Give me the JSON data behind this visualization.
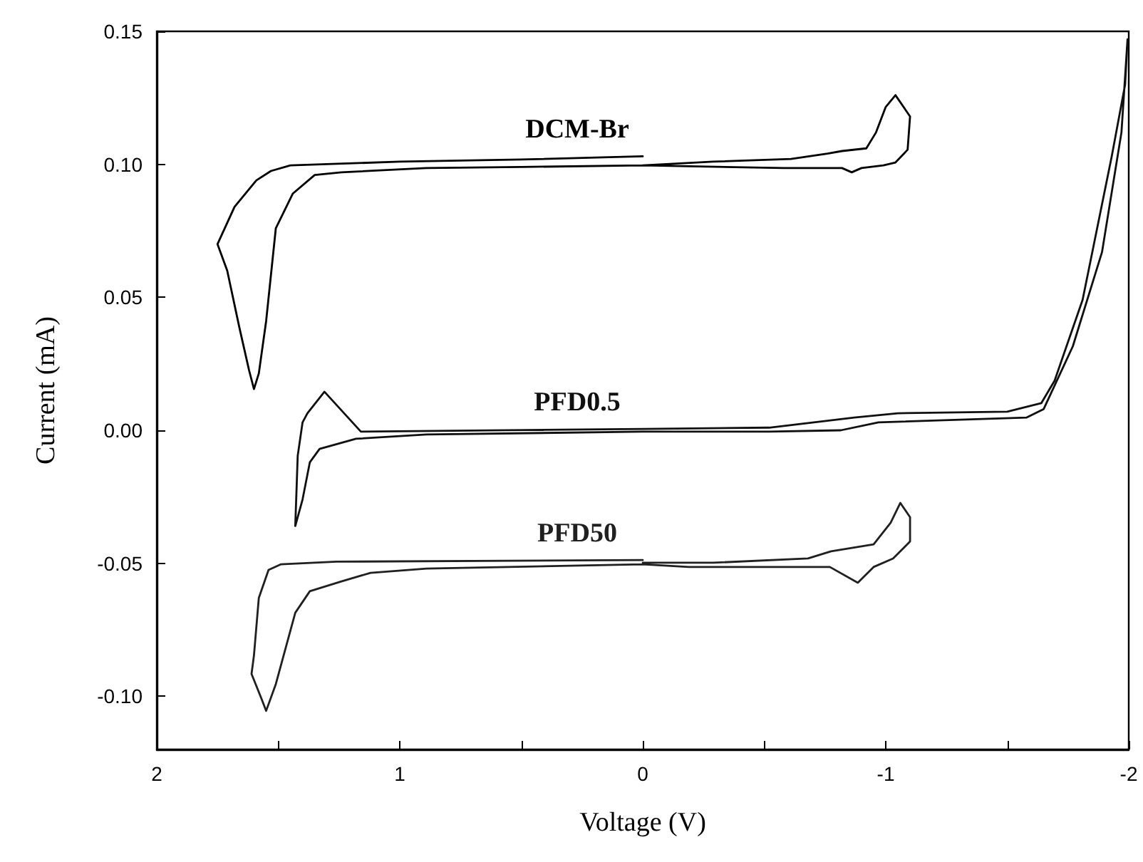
{
  "chart_data": {
    "type": "line",
    "xlabel": "Voltage (V)",
    "ylabel": "Current (mA)",
    "xlim": [
      2,
      -2
    ],
    "ylim": [
      -0.12,
      0.15
    ],
    "xticks": [
      2,
      {
        "value": 1.5,
        "label": null
      },
      1,
      {
        "value": 0.5,
        "label": null
      },
      0,
      {
        "value": -0.5,
        "label": null
      },
      -1,
      {
        "value": -1.5,
        "label": null
      },
      -2
    ],
    "yticks": [
      {
        "value": -0.1,
        "label": "-0.10"
      },
      -0.05,
      {
        "value": 0,
        "label": "0.00"
      },
      0.05,
      {
        "value": 0.1,
        "label": "0.10"
      },
      0.15
    ],
    "grid": false,
    "legend": false,
    "marker": "none",
    "line_style": "solid",
    "series": [
      {
        "name": "DCM-Br",
        "color": "#000000",
        "x": [
          0,
          0.5,
          1.0,
          1.45,
          1.53,
          1.59,
          1.68,
          1.75,
          1.71,
          1.66,
          1.62,
          1.6,
          1.58,
          1.55,
          1.51,
          1.44,
          1.35,
          1.24,
          0.89,
          0.5,
          0,
          -0.58,
          -0.82,
          -0.86,
          -0.9,
          -0.99,
          -1.04,
          -1.09,
          -1.1,
          -1.07,
          -1.04,
          -1.0,
          -0.96,
          -0.92,
          -0.82,
          -0.76,
          -0.61,
          -0.29,
          0
        ],
        "values": [
          0.103,
          0.1018,
          0.101,
          0.0996,
          0.0975,
          0.094,
          0.084,
          0.07,
          0.06,
          0.0386,
          0.0225,
          0.0155,
          0.0214,
          0.041,
          0.076,
          0.089,
          0.096,
          0.097,
          0.0986,
          0.099,
          0.0996,
          0.0986,
          0.0986,
          0.097,
          0.0986,
          0.0996,
          0.1007,
          0.1055,
          0.118,
          0.122,
          0.126,
          0.1216,
          0.112,
          0.106,
          0.105,
          0.104,
          0.102,
          0.101,
          0.0996
        ]
      },
      {
        "name": "PFD0.5",
        "color": "#101010",
        "x": [
          0,
          1.16,
          1.31,
          1.38,
          1.4,
          1.42,
          1.43,
          null,
          1.43,
          1.4,
          1.37,
          1.33,
          1.18,
          0.89,
          0,
          -0.52,
          -0.815,
          -0.97,
          -1.58,
          -1.65,
          -1.77,
          -1.89,
          -1.97,
          -1.995,
          null,
          -1.995,
          -1.985,
          -1.93,
          -1.81,
          -1.695,
          -1.64,
          -1.5,
          -1.05,
          -0.87,
          -0.52,
          0
        ],
        "values": [
          0.0005,
          -0.0005,
          0.0145,
          0.0064,
          0.003,
          -0.0096,
          -0.036,
          null,
          -0.036,
          -0.026,
          -0.012,
          -0.007,
          -0.0032,
          -0.0016,
          -0.0005,
          -0.0005,
          0,
          0.003,
          0.0048,
          0.008,
          0.0316,
          0.067,
          0.112,
          0.147,
          null,
          0.147,
          0.13,
          0.103,
          0.049,
          0.0187,
          0.0102,
          0.007,
          0.0064,
          0.0048,
          0.001,
          0.0005
        ]
      },
      {
        "name": "PFD50",
        "color": "#202020",
        "x": [
          0,
          1.26,
          1.49,
          1.54,
          1.58,
          1.6,
          1.61,
          1.57,
          1.55,
          1.51,
          1.47,
          1.43,
          1.37,
          1.24,
          1.12,
          0.89,
          0,
          -0.19,
          -0.77,
          -0.885,
          -0.95,
          -1.03,
          -1.1,
          -1.1,
          -1.06,
          -1.02,
          -0.95,
          -0.775,
          -0.68,
          -0.29,
          0
        ],
        "values": [
          -0.0488,
          -0.0494,
          -0.0504,
          -0.0525,
          -0.063,
          -0.0846,
          -0.0916,
          -0.1007,
          -0.1055,
          -0.0954,
          -0.082,
          -0.0686,
          -0.0605,
          -0.0568,
          -0.0536,
          -0.052,
          -0.0504,
          -0.0514,
          -0.0514,
          -0.0573,
          -0.0514,
          -0.0482,
          -0.0418,
          -0.0327,
          -0.0273,
          -0.0348,
          -0.0429,
          -0.0455,
          -0.0482,
          -0.0498,
          -0.0498
        ]
      }
    ]
  }
}
